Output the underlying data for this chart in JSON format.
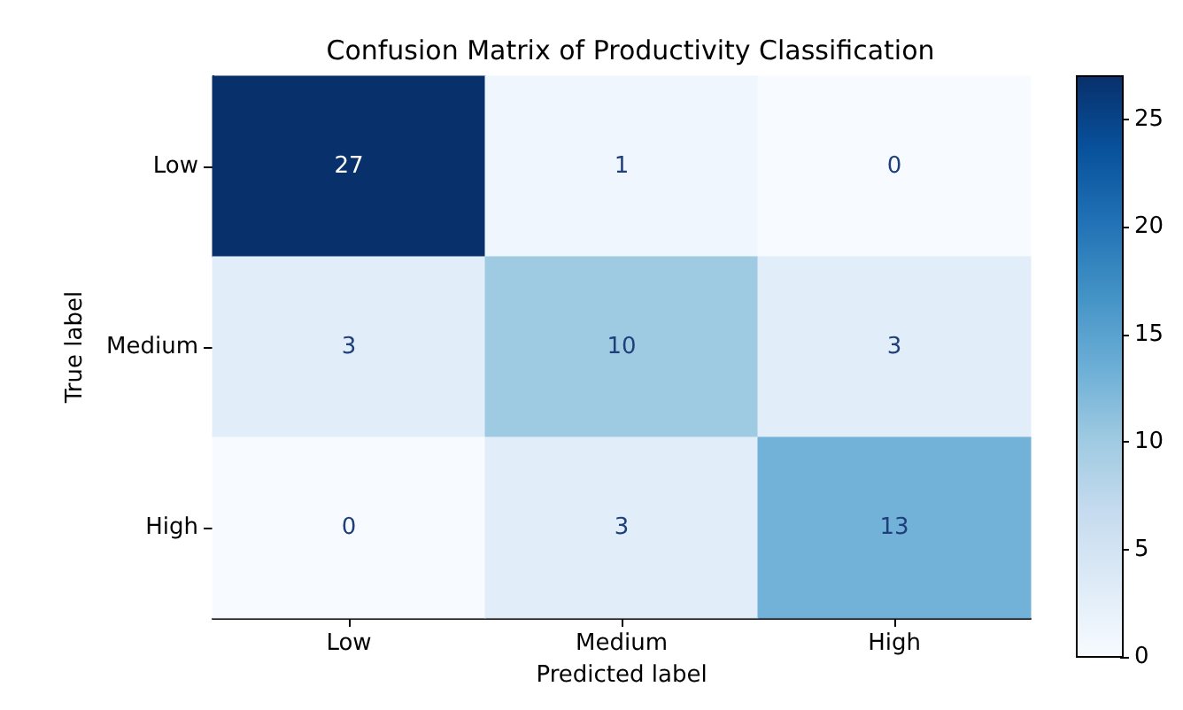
{
  "chart_data": {
    "type": "heatmap",
    "title": "Confusion Matrix of Productivity Classification",
    "xlabel": "Predicted label",
    "ylabel": "True label",
    "categories": [
      "Low",
      "Medium",
      "High"
    ],
    "y_categories": [
      "Low",
      "Medium",
      "High"
    ],
    "cells": [
      [
        27,
        1,
        0
      ],
      [
        3,
        10,
        3
      ],
      [
        0,
        3,
        13
      ]
    ],
    "clim": [
      0,
      27
    ],
    "cticks": [
      0,
      5,
      10,
      15,
      20,
      25
    ],
    "data_labels": true
  }
}
